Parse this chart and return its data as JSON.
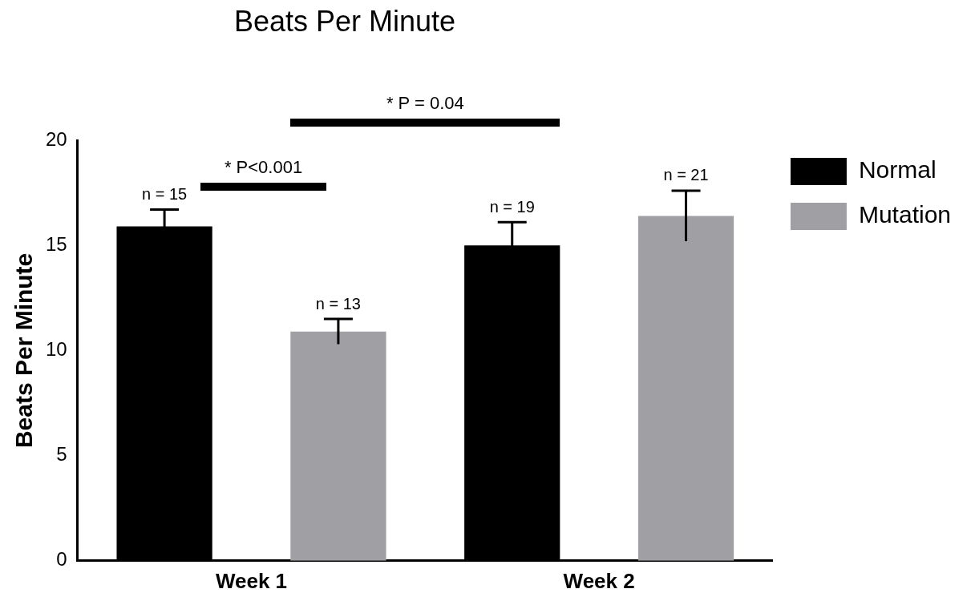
{
  "chart_data": {
    "type": "bar",
    "title": "Beats Per Minute",
    "ylabel": "Beats Per Minute",
    "categories": [
      "Week 1",
      "Week 2"
    ],
    "series": [
      {
        "name": "Normal",
        "color": "#000000",
        "values": [
          15.9,
          15.0
        ],
        "errors": [
          0.8,
          1.1
        ]
      },
      {
        "name": "Mutation",
        "color": "#a0a0a4",
        "values": [
          10.9,
          16.4
        ],
        "errors": [
          0.6,
          1.2
        ]
      }
    ],
    "ylim": [
      0,
      20
    ],
    "yticks": [
      0,
      5,
      10,
      15,
      20
    ],
    "grid": false,
    "legend": "top right",
    "annotations": [
      "* P<0.001",
      "* P = 0.04",
      "n = 15",
      "n = 13",
      "n = 19",
      "n = 21"
    ]
  }
}
